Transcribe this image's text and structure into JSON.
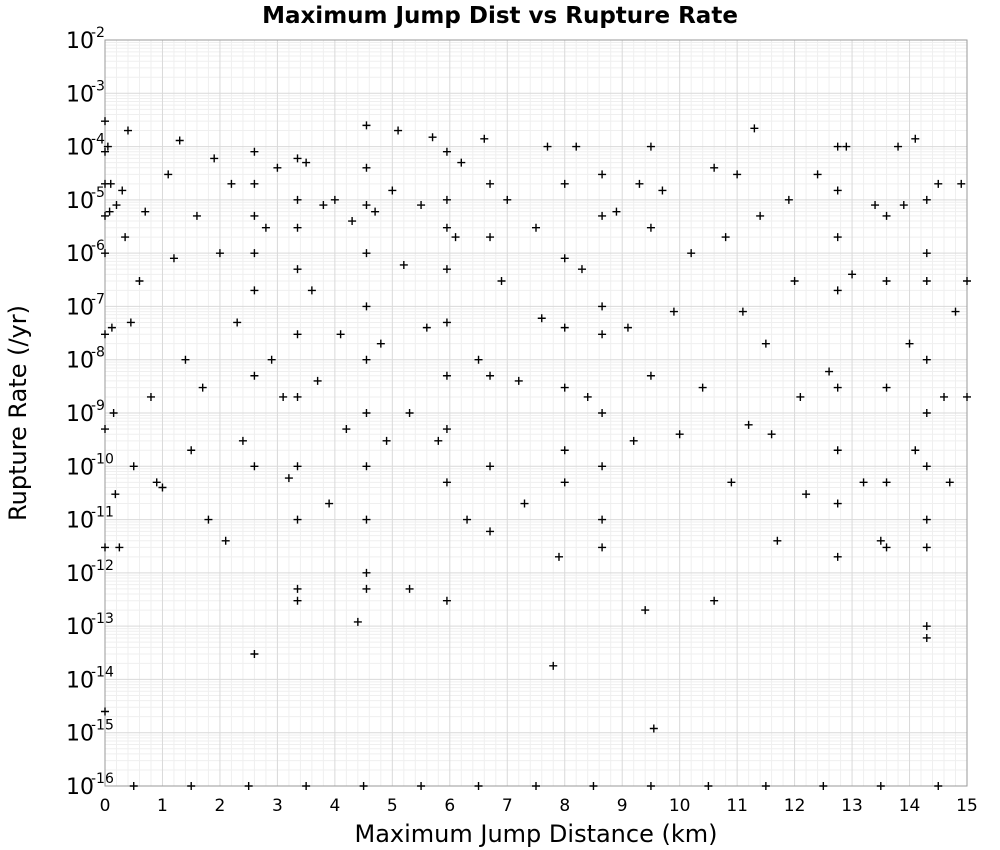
{
  "chart_data": {
    "type": "scatter",
    "title": "Maximum Jump Dist vs Rupture Rate",
    "xlabel": "Maximum Jump Distance (km)",
    "ylabel": "Rupture Rate (/yr)",
    "xlim": [
      0,
      15
    ],
    "ylim": [
      1e-16,
      0.01
    ],
    "yscale": "log",
    "grid": true,
    "marker": "+",
    "marker_color": "#000000",
    "xticks": [
      "0",
      "1",
      "2",
      "3",
      "4",
      "5",
      "6",
      "7",
      "8",
      "9",
      "10",
      "11",
      "12",
      "13",
      "14",
      "15"
    ],
    "yticks": [
      {
        "base": "10",
        "exp": "-2"
      },
      {
        "base": "10",
        "exp": "-3"
      },
      {
        "base": "10",
        "exp": "-4"
      },
      {
        "base": "10",
        "exp": "-5"
      },
      {
        "base": "10",
        "exp": "-6"
      },
      {
        "base": "10",
        "exp": "-7"
      },
      {
        "base": "10",
        "exp": "-8"
      },
      {
        "base": "10",
        "exp": "-9"
      },
      {
        "base": "10",
        "exp": "-10"
      },
      {
        "base": "10",
        "exp": "-11"
      },
      {
        "base": "10",
        "exp": "-12"
      },
      {
        "base": "10",
        "exp": "-13"
      },
      {
        "base": "10",
        "exp": "-14"
      },
      {
        "base": "10",
        "exp": "-15"
      },
      {
        "base": "10",
        "exp": "-16"
      }
    ],
    "series": [
      {
        "points": [
          [
            0.0,
            0.0003
          ],
          [
            0.0,
            8e-05
          ],
          [
            0.0,
            2e-05
          ],
          [
            0.0,
            5e-06
          ],
          [
            0.0,
            1e-06
          ],
          [
            0.0,
            3e-08
          ],
          [
            0.0,
            5e-10
          ],
          [
            0.0,
            3e-12
          ],
          [
            0.0,
            2.5e-15
          ],
          [
            0.05,
            0.0001
          ],
          [
            0.08,
            6e-06
          ],
          [
            0.1,
            2e-05
          ],
          [
            0.12,
            4e-08
          ],
          [
            0.15,
            1e-09
          ],
          [
            0.18,
            3e-11
          ],
          [
            0.2,
            8e-06
          ],
          [
            0.25,
            3e-12
          ],
          [
            0.3,
            1.5e-05
          ],
          [
            0.35,
            2e-06
          ],
          [
            0.4,
            0.0002
          ],
          [
            0.45,
            5e-08
          ],
          [
            0.5,
            1e-10
          ],
          [
            0.6,
            3e-07
          ],
          [
            0.7,
            6e-06
          ],
          [
            0.8,
            2e-09
          ],
          [
            0.9,
            5e-11
          ],
          [
            1.0,
            4e-11
          ],
          [
            1.1,
            3e-05
          ],
          [
            1.2,
            8e-07
          ],
          [
            1.3,
            0.00013
          ],
          [
            1.4,
            1e-08
          ],
          [
            1.5,
            2e-10
          ],
          [
            1.6,
            5e-06
          ],
          [
            1.7,
            3e-09
          ],
          [
            1.8,
            1e-11
          ],
          [
            1.9,
            6e-05
          ],
          [
            2.0,
            1e-06
          ],
          [
            2.1,
            4e-12
          ],
          [
            2.2,
            2e-05
          ],
          [
            2.3,
            5e-08
          ],
          [
            2.4,
            3e-10
          ],
          [
            2.6,
            8e-05
          ],
          [
            2.6,
            2e-05
          ],
          [
            2.6,
            5e-06
          ],
          [
            2.6,
            1e-06
          ],
          [
            2.6,
            2e-07
          ],
          [
            2.6,
            5e-09
          ],
          [
            2.6,
            1e-10
          ],
          [
            2.6,
            3e-14
          ],
          [
            2.8,
            3e-06
          ],
          [
            2.9,
            1e-08
          ],
          [
            3.0,
            4e-05
          ],
          [
            3.1,
            2e-09
          ],
          [
            3.2,
            6e-11
          ],
          [
            3.35,
            6e-05
          ],
          [
            3.35,
            1e-05
          ],
          [
            3.35,
            3e-06
          ],
          [
            3.35,
            5e-07
          ],
          [
            3.35,
            3e-08
          ],
          [
            3.35,
            2e-09
          ],
          [
            3.35,
            1e-10
          ],
          [
            3.35,
            1e-11
          ],
          [
            3.35,
            5e-13
          ],
          [
            3.35,
            3e-13
          ],
          [
            3.5,
            5e-05
          ],
          [
            3.6,
            2e-07
          ],
          [
            3.7,
            4e-09
          ],
          [
            3.8,
            8e-06
          ],
          [
            3.9,
            2e-11
          ],
          [
            4.0,
            1e-05
          ],
          [
            4.1,
            3e-08
          ],
          [
            4.2,
            5e-10
          ],
          [
            4.3,
            4e-06
          ],
          [
            4.4,
            1.2e-13
          ],
          [
            4.55,
            0.00025
          ],
          [
            4.55,
            4e-05
          ],
          [
            4.55,
            8e-06
          ],
          [
            4.55,
            1e-06
          ],
          [
            4.55,
            1e-07
          ],
          [
            4.55,
            1e-08
          ],
          [
            4.55,
            1e-09
          ],
          [
            4.55,
            1e-10
          ],
          [
            4.55,
            1e-11
          ],
          [
            4.55,
            1e-12
          ],
          [
            4.55,
            5e-13
          ],
          [
            4.7,
            6e-06
          ],
          [
            4.8,
            2e-08
          ],
          [
            4.9,
            3e-10
          ],
          [
            5.0,
            1.5e-05
          ],
          [
            5.1,
            0.0002
          ],
          [
            5.2,
            6e-07
          ],
          [
            5.3,
            1e-09
          ],
          [
            5.3,
            5e-13
          ],
          [
            5.5,
            8e-06
          ],
          [
            5.6,
            4e-08
          ],
          [
            5.7,
            0.00015
          ],
          [
            5.8,
            3e-10
          ],
          [
            5.95,
            8e-05
          ],
          [
            5.95,
            1e-05
          ],
          [
            5.95,
            3e-06
          ],
          [
            5.95,
            5e-07
          ],
          [
            5.95,
            5e-08
          ],
          [
            5.95,
            5e-09
          ],
          [
            5.95,
            5e-10
          ],
          [
            5.95,
            5e-11
          ],
          [
            5.95,
            3e-13
          ],
          [
            6.1,
            2e-06
          ],
          [
            6.2,
            5e-05
          ],
          [
            6.3,
            1e-11
          ],
          [
            6.5,
            1e-08
          ],
          [
            6.6,
            0.00014
          ],
          [
            6.7,
            2e-05
          ],
          [
            6.7,
            2e-06
          ],
          [
            6.7,
            5e-09
          ],
          [
            6.7,
            1e-10
          ],
          [
            6.7,
            6e-12
          ],
          [
            6.9,
            3e-07
          ],
          [
            7.0,
            1e-05
          ],
          [
            7.2,
            4e-09
          ],
          [
            7.3,
            2e-11
          ],
          [
            7.5,
            3e-06
          ],
          [
            7.6,
            6e-08
          ],
          [
            7.7,
            0.0001
          ],
          [
            7.8,
            1.8e-14
          ],
          [
            7.9,
            2e-12
          ],
          [
            8.0,
            2e-05
          ],
          [
            8.0,
            8e-07
          ],
          [
            8.0,
            4e-08
          ],
          [
            8.0,
            3e-09
          ],
          [
            8.0,
            2e-10
          ],
          [
            8.0,
            5e-11
          ],
          [
            8.2,
            0.0001
          ],
          [
            8.3,
            5e-07
          ],
          [
            8.4,
            2e-09
          ],
          [
            8.65,
            3e-05
          ],
          [
            8.65,
            5e-06
          ],
          [
            8.65,
            1e-07
          ],
          [
            8.65,
            3e-08
          ],
          [
            8.65,
            1e-09
          ],
          [
            8.65,
            1e-10
          ],
          [
            8.65,
            1e-11
          ],
          [
            8.65,
            3e-12
          ],
          [
            8.9,
            6e-06
          ],
          [
            9.1,
            4e-08
          ],
          [
            9.2,
            3e-10
          ],
          [
            9.3,
            2e-05
          ],
          [
            9.4,
            2e-13
          ],
          [
            9.5,
            0.0001
          ],
          [
            9.5,
            3e-06
          ],
          [
            9.5,
            5e-09
          ],
          [
            9.55,
            1.2e-15
          ],
          [
            9.7,
            1.5e-05
          ],
          [
            9.9,
            8e-08
          ],
          [
            10.0,
            4e-10
          ],
          [
            10.2,
            1e-06
          ],
          [
            10.4,
            3e-09
          ],
          [
            10.6,
            4e-05
          ],
          [
            10.6,
            3e-13
          ],
          [
            10.8,
            2e-06
          ],
          [
            10.9,
            5e-11
          ],
          [
            11.0,
            3e-05
          ],
          [
            11.1,
            8e-08
          ],
          [
            11.2,
            6e-10
          ],
          [
            11.3,
            0.00022
          ],
          [
            11.4,
            5e-06
          ],
          [
            11.5,
            2e-08
          ],
          [
            11.6,
            4e-10
          ],
          [
            11.7,
            4e-12
          ],
          [
            11.9,
            1e-05
          ],
          [
            12.0,
            3e-07
          ],
          [
            12.1,
            2e-09
          ],
          [
            12.2,
            3e-11
          ],
          [
            12.4,
            3e-05
          ],
          [
            12.6,
            6e-09
          ],
          [
            12.75,
            0.0001
          ],
          [
            12.75,
            1.5e-05
          ],
          [
            12.75,
            2e-06
          ],
          [
            12.75,
            2e-07
          ],
          [
            12.75,
            3e-09
          ],
          [
            12.75,
            2e-10
          ],
          [
            12.75,
            2e-11
          ],
          [
            12.75,
            2e-12
          ],
          [
            12.9,
            0.0001
          ],
          [
            13.0,
            4e-07
          ],
          [
            13.2,
            5e-11
          ],
          [
            13.4,
            8e-06
          ],
          [
            13.5,
            4e-12
          ],
          [
            13.6,
            5e-06
          ],
          [
            13.6,
            3e-07
          ],
          [
            13.6,
            3e-09
          ],
          [
            13.6,
            5e-11
          ],
          [
            13.6,
            3e-12
          ],
          [
            13.8,
            0.0001
          ],
          [
            13.9,
            8e-06
          ],
          [
            14.0,
            2e-08
          ],
          [
            14.1,
            2e-10
          ],
          [
            14.1,
            0.00014
          ],
          [
            14.3,
            1e-05
          ],
          [
            14.3,
            1e-06
          ],
          [
            14.3,
            3e-07
          ],
          [
            14.3,
            1e-08
          ],
          [
            14.3,
            1e-09
          ],
          [
            14.3,
            1e-10
          ],
          [
            14.3,
            1e-11
          ],
          [
            14.3,
            3e-12
          ],
          [
            14.3,
            1e-13
          ],
          [
            14.3,
            6e-14
          ],
          [
            14.5,
            2e-05
          ],
          [
            14.6,
            2e-09
          ],
          [
            14.7,
            5e-11
          ],
          [
            14.8,
            8e-08
          ],
          [
            14.9,
            2e-05
          ],
          [
            15.0,
            3e-07
          ],
          [
            15.0,
            2e-09
          ],
          [
            0.5,
            1e-16
          ],
          [
            1.5,
            1e-16
          ],
          [
            2.5,
            1e-16
          ],
          [
            3.5,
            1e-16
          ],
          [
            4.5,
            1e-16
          ],
          [
            5.5,
            1e-16
          ],
          [
            6.5,
            1e-16
          ],
          [
            7.5,
            1e-16
          ],
          [
            8.5,
            1e-16
          ],
          [
            9.5,
            1e-16
          ],
          [
            10.5,
            1e-16
          ],
          [
            11.5,
            1e-16
          ],
          [
            12.5,
            1e-16
          ],
          [
            13.5,
            1e-16
          ],
          [
            14.5,
            1e-16
          ]
        ]
      }
    ]
  }
}
